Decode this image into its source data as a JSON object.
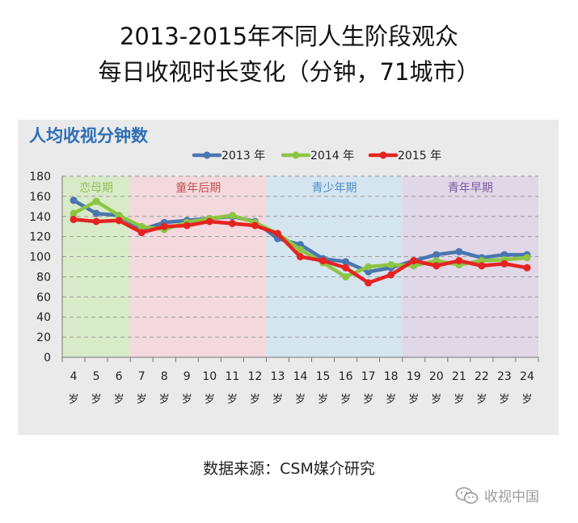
{
  "title_line1": "2013-2015年不同人生阶段观众",
  "title_line2": "每日收视时长变化（分钟，71城市）",
  "panel_title": "人均收视分钟数",
  "source": "数据来源：CSM媒介研究",
  "watermark": "收视中国",
  "chart_data": {
    "type": "line",
    "title": "人均收视分钟数",
    "x": [
      "4",
      "5",
      "6",
      "7",
      "8",
      "9",
      "10",
      "11",
      "12",
      "13",
      "14",
      "15",
      "16",
      "17",
      "18",
      "19",
      "20",
      "21",
      "22",
      "23",
      "24"
    ],
    "x_unit": "岁",
    "ylim": [
      0,
      180
    ],
    "yticks": [
      0,
      20,
      40,
      60,
      80,
      100,
      120,
      140,
      160,
      180
    ],
    "grid": true,
    "legend_position": "top",
    "series": [
      {
        "name": "2013 年",
        "color": "#4a76b0",
        "values": [
          156,
          143,
          141,
          127,
          134,
          136,
          138,
          140,
          135,
          118,
          112,
          98,
          95,
          85,
          89,
          96,
          102,
          105,
          99,
          102,
          102
        ]
      },
      {
        "name": "2014 年",
        "color": "#8cc543",
        "values": [
          143,
          155,
          141,
          130,
          127,
          134,
          138,
          141,
          134,
          123,
          107,
          94,
          80,
          90,
          92,
          91,
          96,
          92,
          96,
          97,
          99
        ]
      },
      {
        "name": "2015 年",
        "color": "#e52421",
        "values": [
          137,
          135,
          136,
          124,
          130,
          131,
          135,
          133,
          131,
          123,
          100,
          96,
          89,
          74,
          82,
          96,
          91,
          96,
          91,
          93,
          89
        ]
      }
    ],
    "stages": [
      {
        "label": "恋母期",
        "from": "4",
        "to": "6",
        "fill": "#d8ebc8",
        "text_color": "#8fbf56"
      },
      {
        "label": "童年后期",
        "from": "7",
        "to": "12",
        "fill": "#f3d9dd",
        "text_color": "#c4504f"
      },
      {
        "label": "青少年期",
        "from": "13",
        "to": "18",
        "fill": "#d4e5f0",
        "text_color": "#4f8fc6"
      },
      {
        "label": "青年早期",
        "from": "19",
        "to": "24",
        "fill": "#e0d7e7",
        "text_color": "#7b5aa0"
      }
    ]
  }
}
